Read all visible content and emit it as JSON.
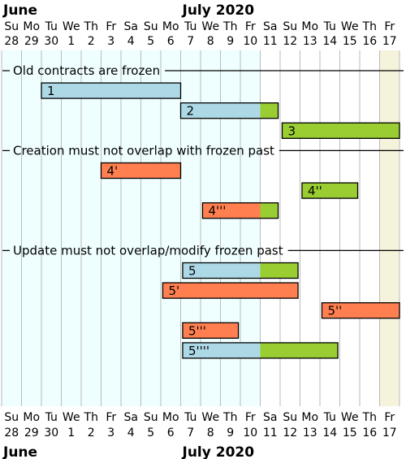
{
  "months": [
    {
      "label": "June",
      "start_day": 0
    },
    {
      "label": "July 2020",
      "start_day": 9
    }
  ],
  "days": [
    {
      "dow": "Su",
      "num": "28"
    },
    {
      "dow": "Mo",
      "num": "29"
    },
    {
      "dow": "Tu",
      "num": "30"
    },
    {
      "dow": "We",
      "num": "1"
    },
    {
      "dow": "Th",
      "num": "2"
    },
    {
      "dow": "Fr",
      "num": "3"
    },
    {
      "dow": "Sa",
      "num": "4"
    },
    {
      "dow": "Su",
      "num": "5"
    },
    {
      "dow": "Mo",
      "num": "6"
    },
    {
      "dow": "Tu",
      "num": "7"
    },
    {
      "dow": "We",
      "num": "8"
    },
    {
      "dow": "Th",
      "num": "9"
    },
    {
      "dow": "Fr",
      "num": "10"
    },
    {
      "dow": "Sa",
      "num": "11"
    },
    {
      "dow": "Su",
      "num": "12"
    },
    {
      "dow": "Mo",
      "num": "13"
    },
    {
      "dow": "Tu",
      "num": "14"
    },
    {
      "dow": "We",
      "num": "15"
    },
    {
      "dow": "Th",
      "num": "16"
    },
    {
      "dow": "Fr",
      "num": "17"
    }
  ],
  "frozen_until_day": 13,
  "today_day": 19,
  "colors": {
    "frozen_bg": "#effefe",
    "today_bg": "#f5f3dc",
    "gridline": "#bbbbbb",
    "blue": "#add8e6",
    "green": "#9acd32",
    "orange": "#ff7f50"
  },
  "sections": [
    {
      "label": "Old contracts are frozen",
      "row": 1
    },
    {
      "label": "Creation must not overlap with frozen past",
      "row": 5
    },
    {
      "label": "Update must not overlap/modify frozen past",
      "row": 10
    }
  ],
  "bars": [
    {
      "label": "1",
      "row": 2,
      "start": 2,
      "end": 9,
      "segments": [
        {
          "from": 2,
          "to": 9,
          "color": "blue"
        }
      ]
    },
    {
      "label": "2",
      "row": 3,
      "start": 9,
      "end": 13.9,
      "segments": [
        {
          "from": 9,
          "to": 13,
          "color": "blue"
        },
        {
          "from": 13,
          "to": 13.9,
          "color": "green"
        }
      ]
    },
    {
      "label": "3",
      "row": 4,
      "start": 14.1,
      "end": 20,
      "segments": [
        {
          "from": 14.1,
          "to": 20,
          "color": "green"
        }
      ]
    },
    {
      "label": "4'",
      "row": 6,
      "start": 5,
      "end": 9,
      "segments": [
        {
          "from": 5,
          "to": 9,
          "color": "orange"
        }
      ]
    },
    {
      "label": "4''",
      "row": 7,
      "start": 15.1,
      "end": 17.9,
      "segments": [
        {
          "from": 15.1,
          "to": 17.9,
          "color": "green"
        }
      ]
    },
    {
      "label": "4'''",
      "row": 8,
      "start": 10.1,
      "end": 13.9,
      "segments": [
        {
          "from": 10.1,
          "to": 13,
          "color": "orange"
        },
        {
          "from": 13,
          "to": 13.9,
          "color": "green"
        }
      ]
    },
    {
      "label": "5",
      "row": 11,
      "start": 9.1,
      "end": 14.9,
      "segments": [
        {
          "from": 9.1,
          "to": 13,
          "color": "blue"
        },
        {
          "from": 13,
          "to": 14.9,
          "color": "green"
        }
      ]
    },
    {
      "label": "5'",
      "row": 12,
      "start": 8.1,
      "end": 14.9,
      "segments": [
        {
          "from": 8.1,
          "to": 14.9,
          "color": "orange"
        }
      ]
    },
    {
      "label": "5''",
      "row": 13,
      "start": 16.1,
      "end": 20,
      "segments": [
        {
          "from": 16.1,
          "to": 20,
          "color": "orange"
        }
      ]
    },
    {
      "label": "5'''",
      "row": 14,
      "start": 9.1,
      "end": 11.9,
      "segments": [
        {
          "from": 9.1,
          "to": 11.9,
          "color": "orange"
        }
      ]
    },
    {
      "label": "5''''",
      "row": 15,
      "start": 9.1,
      "end": 16.9,
      "segments": [
        {
          "from": 9.1,
          "to": 13,
          "color": "blue"
        },
        {
          "from": 13,
          "to": 16.9,
          "color": "green"
        }
      ]
    }
  ]
}
